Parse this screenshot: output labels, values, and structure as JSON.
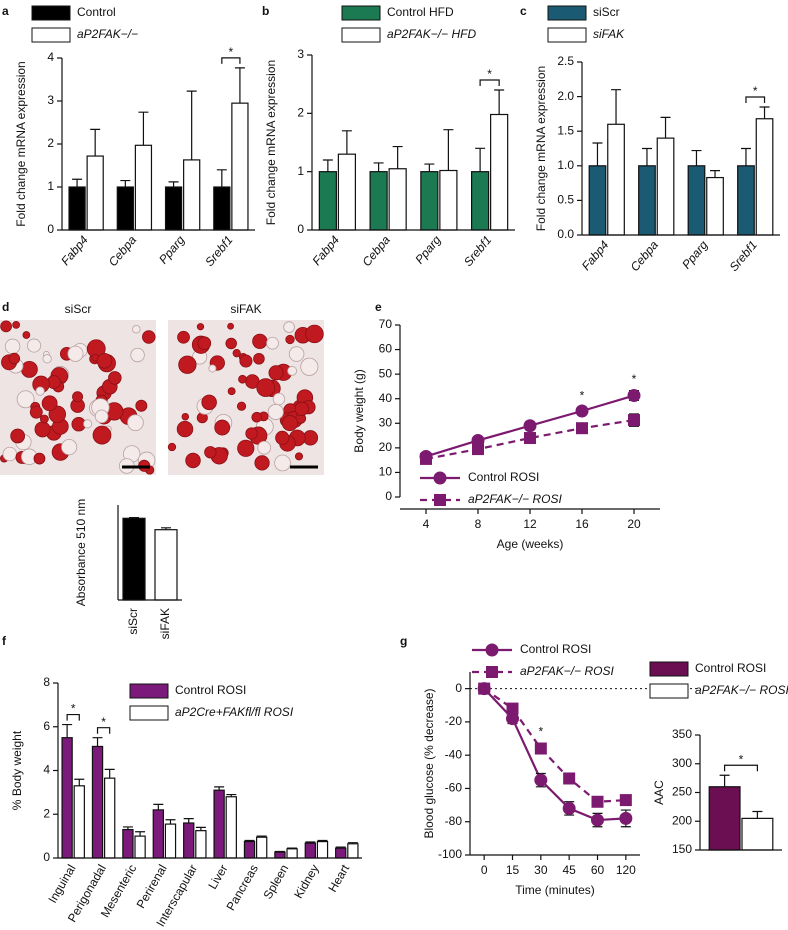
{
  "chart_data": [
    {
      "type": "bar",
      "label": "a",
      "categories": [
        "Fabp4",
        "Cebpa",
        "Pparg",
        "Srebf1"
      ],
      "series": [
        {
          "name": "Control",
          "color": "#000000",
          "values": [
            1,
            1,
            1,
            1
          ],
          "errors": [
            0.18,
            0.15,
            0.12,
            0.4
          ]
        },
        {
          "name": "aP2FAK−/−",
          "color": "#ffffff",
          "values": [
            1.72,
            1.97,
            1.63,
            2.95
          ],
          "errors": [
            0.62,
            0.77,
            1.6,
            0.82
          ]
        }
      ],
      "y_label": "Fold change mRNA expression",
      "ylim": [
        0,
        4
      ],
      "yticks": [
        0,
        1,
        2,
        3,
        4
      ],
      "annotations": [
        "*"
      ]
    },
    {
      "type": "bar",
      "label": "b",
      "categories": [
        "Fabp4",
        "Cebpa",
        "Pparg",
        "Srebf1"
      ],
      "series": [
        {
          "name": "Control HFD",
          "color": "#1b7a52",
          "values": [
            1,
            1,
            1,
            1
          ],
          "errors": [
            0.2,
            0.15,
            0.13,
            0.4
          ]
        },
        {
          "name": "aP2FAK−/− HFD",
          "color": "#ffffff",
          "values": [
            1.3,
            1.05,
            1.02,
            1.98
          ],
          "errors": [
            0.4,
            0.38,
            0.7,
            0.42
          ]
        }
      ],
      "y_label": "Fold change mRNA expression",
      "ylim": [
        0,
        3
      ],
      "yticks": [
        0,
        1,
        2,
        3
      ],
      "annotations": [
        "*"
      ]
    },
    {
      "type": "bar",
      "label": "c",
      "categories": [
        "Fabp4",
        "Cebpa",
        "Pparg",
        "Srebf1"
      ],
      "series": [
        {
          "name": "siScr",
          "color": "#1b5a73",
          "values": [
            1,
            1,
            1,
            1
          ],
          "errors": [
            0.33,
            0.25,
            0.22,
            0.25
          ]
        },
        {
          "name": "siFAK",
          "color": "#ffffff",
          "values": [
            1.6,
            1.4,
            0.83,
            1.68
          ],
          "errors": [
            0.5,
            0.3,
            0.1,
            0.17
          ]
        }
      ],
      "y_label": "Fold change mRNA expression",
      "ylim": [
        0,
        2.5
      ],
      "yticks": [
        {
          "value": 0,
          "label": "0.0"
        },
        0.5,
        {
          "value": 1,
          "label": "1.0"
        },
        1.5,
        {
          "value": 2,
          "label": "2.0"
        },
        2.5
      ],
      "annotations": [
        "*"
      ]
    },
    {
      "type": "bar",
      "label": "d",
      "panels": [
        "siScr",
        "siFAK"
      ],
      "categories": [
        "siScr",
        "siFAK"
      ],
      "values": [
        2.15,
        1.85
      ],
      "errors": [
        0.02,
        0.05
      ],
      "colors": [
        "#000000",
        "#ffffff"
      ],
      "y_label": "Absorbance 510 nm",
      "ylim": [
        0,
        2.5
      ]
    },
    {
      "type": "line",
      "label": "e",
      "x": [
        4,
        8,
        12,
        16,
        20
      ],
      "series": [
        {
          "name": "Control ROSI",
          "color": "#7b1a6f",
          "marker": "circle",
          "dashed": false,
          "values": [
            16.5,
            23,
            29,
            35,
            41.3
          ],
          "errors": [
            1,
            0.8,
            1.5,
            1.5,
            2
          ]
        },
        {
          "name": "aP2FAK−/− ROSI",
          "color": "#7b1a6f",
          "marker": "square",
          "dashed": true,
          "values": [
            15.5,
            19.5,
            24,
            28,
            31.3
          ],
          "errors": [
            0.8,
            0.8,
            1,
            1.2,
            2.5
          ]
        }
      ],
      "x_label": "Age (weeks)",
      "y_label": "Body weight (g)",
      "xlim": [
        2,
        22
      ],
      "xticks": [
        4,
        8,
        12,
        16,
        20
      ],
      "ylim": [
        0,
        70
      ],
      "yticks": [
        0,
        10,
        20,
        30,
        40,
        50,
        60,
        70
      ],
      "annotations": [
        "*",
        "*"
      ]
    },
    {
      "type": "bar",
      "label": "f",
      "categories": [
        "Inguinal",
        "Perigonadal",
        "Mesenteric",
        "Perirenal",
        "Interscapular",
        "Liver",
        "Pancreas",
        "Spleen",
        "Kidney",
        "Heart"
      ],
      "series": [
        {
          "name": "Control ROSI",
          "color": "#7b1a7b",
          "values": [
            5.5,
            5.1,
            1.3,
            2.2,
            1.6,
            3.1,
            0.75,
            0.27,
            0.68,
            0.45
          ],
          "errors": [
            0.6,
            0.4,
            0.12,
            0.25,
            0.2,
            0.15,
            0.05,
            0.03,
            0.05,
            0.05
          ]
        },
        {
          "name": "aP2Cre+FAKfl/fl ROSI",
          "color": "#ffffff",
          "values": [
            3.3,
            3.65,
            1.0,
            1.55,
            1.25,
            2.8,
            0.95,
            0.42,
            0.75,
            0.65
          ],
          "errors": [
            0.3,
            0.4,
            0.2,
            0.2,
            0.15,
            0.1,
            0.05,
            0.03,
            0.05,
            0.05
          ]
        }
      ],
      "y_label": "% Body weight",
      "ylim": [
        0,
        8
      ],
      "yticks": [
        0,
        2,
        4,
        6,
        8
      ],
      "annotations": [
        "*",
        "*"
      ]
    },
    {
      "type": "line",
      "label": "g",
      "categories": [
        "0",
        "15",
        "30",
        "45",
        "60",
        "120"
      ],
      "series": [
        {
          "name": "Control ROSI",
          "color": "#7b1a6f",
          "marker": "circle",
          "dashed": false,
          "values": [
            0,
            -18,
            -55,
            -72,
            -79,
            -78
          ],
          "errors": [
            1,
            3,
            4,
            4,
            4,
            5
          ]
        },
        {
          "name": "aP2FAK−/− ROSI",
          "color": "#7b1a6f",
          "marker": "square",
          "dashed": true,
          "values": [
            0,
            -12,
            -36,
            -54,
            -68,
            -67
          ],
          "errors": [
            1,
            3,
            3,
            3,
            2,
            2
          ]
        }
      ],
      "x_label": "Time (minutes)",
      "y_label": "Blood glucose (% decrease)",
      "ylim": [
        -100,
        10
      ],
      "yticks": [
        0,
        -20,
        -40,
        -60,
        -80,
        -100
      ],
      "zero_line": true,
      "annotations": [
        "*"
      ]
    },
    {
      "type": "bar",
      "categories": [
        null
      ],
      "series": [
        {
          "name": "Control ROSI",
          "color": "#6b0f52",
          "values": [
            260
          ],
          "errors": [
            20
          ]
        },
        {
          "name": "aP2FAK−/− ROSI",
          "color": "#ffffff",
          "values": [
            205
          ],
          "errors": [
            12
          ]
        }
      ],
      "y_label": "AAC",
      "ylim": [
        150,
        350
      ],
      "yticks": [
        150,
        200,
        250,
        300,
        350
      ],
      "annotations": [
        "*"
      ]
    }
  ]
}
